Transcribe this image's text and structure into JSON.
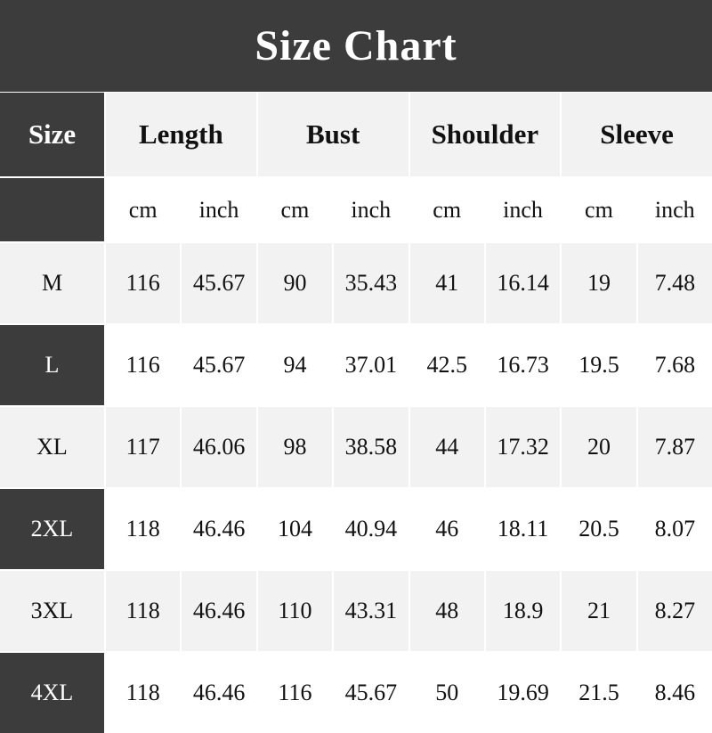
{
  "title": "Size Chart",
  "headers": {
    "size": "Size",
    "groups": [
      "Length",
      "Bust",
      "Shoulder",
      "Sleeve"
    ]
  },
  "units": [
    "cm",
    "inch",
    "cm",
    "inch",
    "cm",
    "inch",
    "cm",
    "inch"
  ],
  "rows": [
    {
      "size": "M",
      "values": [
        "116",
        "45.67",
        "90",
        "35.43",
        "41",
        "16.14",
        "19",
        "7.48"
      ]
    },
    {
      "size": "L",
      "values": [
        "116",
        "45.67",
        "94",
        "37.01",
        "42.5",
        "16.73",
        "19.5",
        "7.68"
      ]
    },
    {
      "size": "XL",
      "values": [
        "117",
        "46.06",
        "98",
        "38.58",
        "44",
        "17.32",
        "20",
        "7.87"
      ]
    },
    {
      "size": "2XL",
      "values": [
        "118",
        "46.46",
        "104",
        "40.94",
        "46",
        "18.11",
        "20.5",
        "8.07"
      ]
    },
    {
      "size": "3XL",
      "values": [
        "118",
        "46.46",
        "110",
        "43.31",
        "48",
        "18.9",
        "21",
        "8.27"
      ]
    },
    {
      "size": "4XL",
      "values": [
        "118",
        "46.46",
        "116",
        "45.67",
        "50",
        "19.69",
        "21.5",
        "8.46"
      ]
    }
  ],
  "colors": {
    "dark": "#3c3c3c",
    "light": "#f2f2f2",
    "white": "#ffffff"
  }
}
